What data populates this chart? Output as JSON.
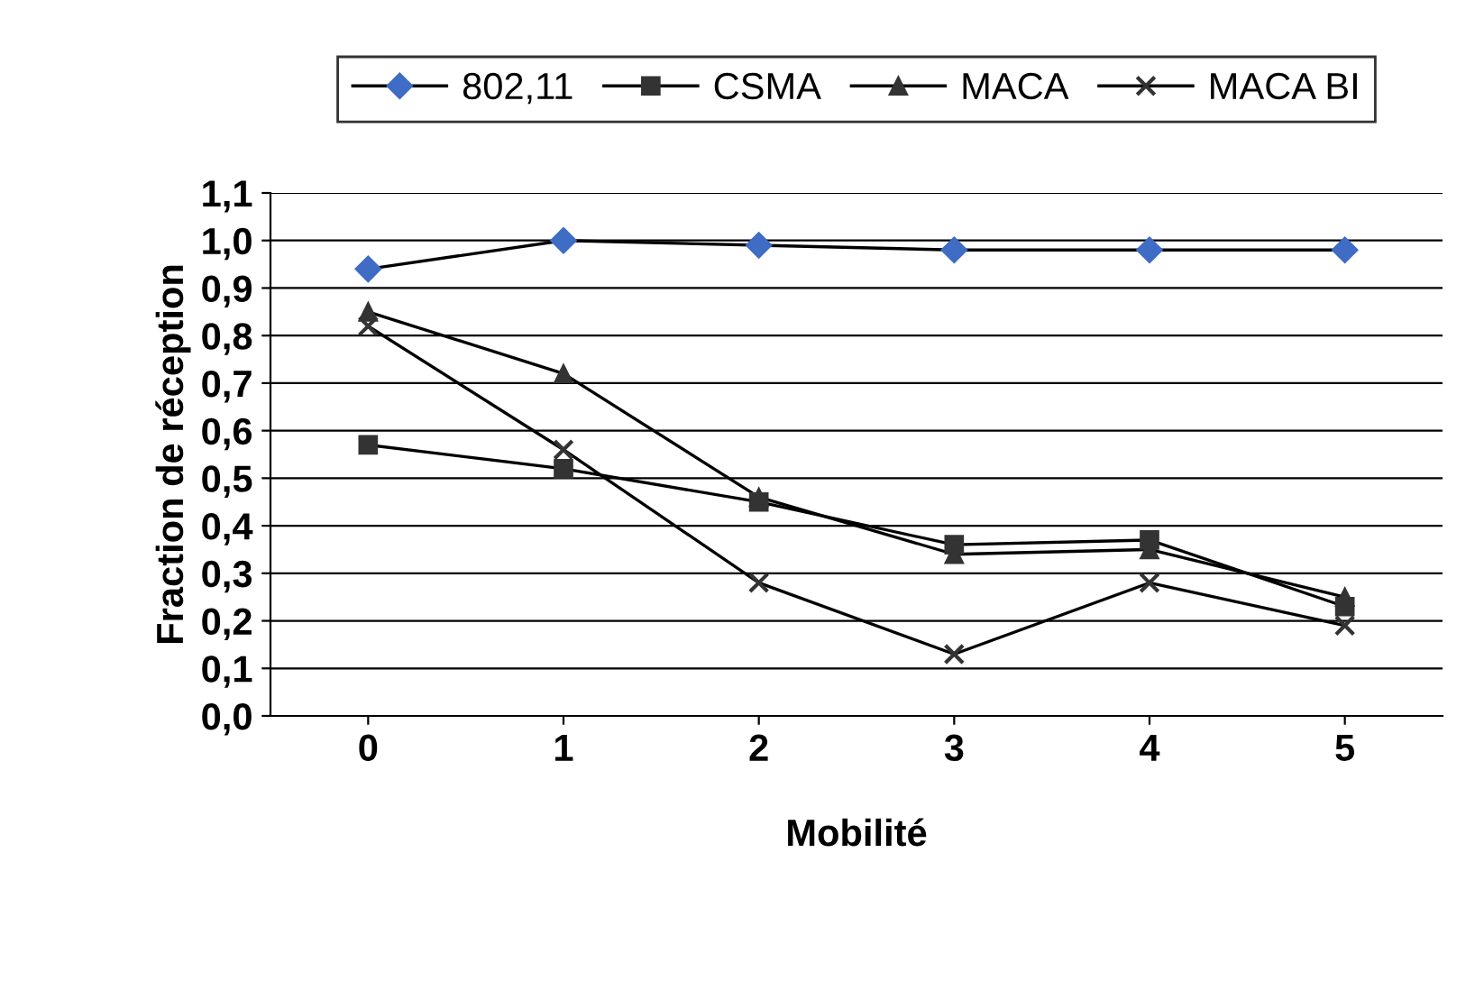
{
  "chart_data": {
    "type": "line",
    "xlabel": "Mobilité",
    "ylabel": "Fraction de réception",
    "categories": [
      "0",
      "1",
      "2",
      "3",
      "4",
      "5"
    ],
    "series": [
      {
        "name": "802,11",
        "color": "#3f6cc4",
        "marker": "diamond",
        "values": [
          0.94,
          1.0,
          0.99,
          0.98,
          0.98,
          0.98
        ]
      },
      {
        "name": "CSMA",
        "color": "#333333",
        "marker": "square",
        "values": [
          0.57,
          0.52,
          0.45,
          0.36,
          0.37,
          0.23
        ]
      },
      {
        "name": "MACA",
        "color": "#333333",
        "marker": "triangle",
        "values": [
          0.85,
          0.72,
          0.46,
          0.34,
          0.35,
          0.25
        ]
      },
      {
        "name": "MACA BI",
        "color": "#333333",
        "marker": "cross",
        "values": [
          0.82,
          0.56,
          0.28,
          0.13,
          0.28,
          0.19
        ]
      }
    ],
    "ylim": [
      0,
      1.1
    ],
    "yticks": [
      {
        "value": 0,
        "label": "0,0"
      },
      {
        "value": 0.1,
        "label": "0,1"
      },
      {
        "value": 0.2,
        "label": "0,2"
      },
      {
        "value": 0.3,
        "label": "0,3"
      },
      {
        "value": 0.4,
        "label": "0,4"
      },
      {
        "value": 0.5,
        "label": "0,5"
      },
      {
        "value": 0.6,
        "label": "0,6"
      },
      {
        "value": 0.7,
        "label": "0,7"
      },
      {
        "value": 0.8,
        "label": "0,8"
      },
      {
        "value": 0.9,
        "label": "0,9"
      },
      {
        "value": 1.0,
        "label": "1,0"
      },
      {
        "value": 1.1,
        "label": "1,1"
      }
    ],
    "grid": "y",
    "legend": "top",
    "line_style": "solid"
  }
}
